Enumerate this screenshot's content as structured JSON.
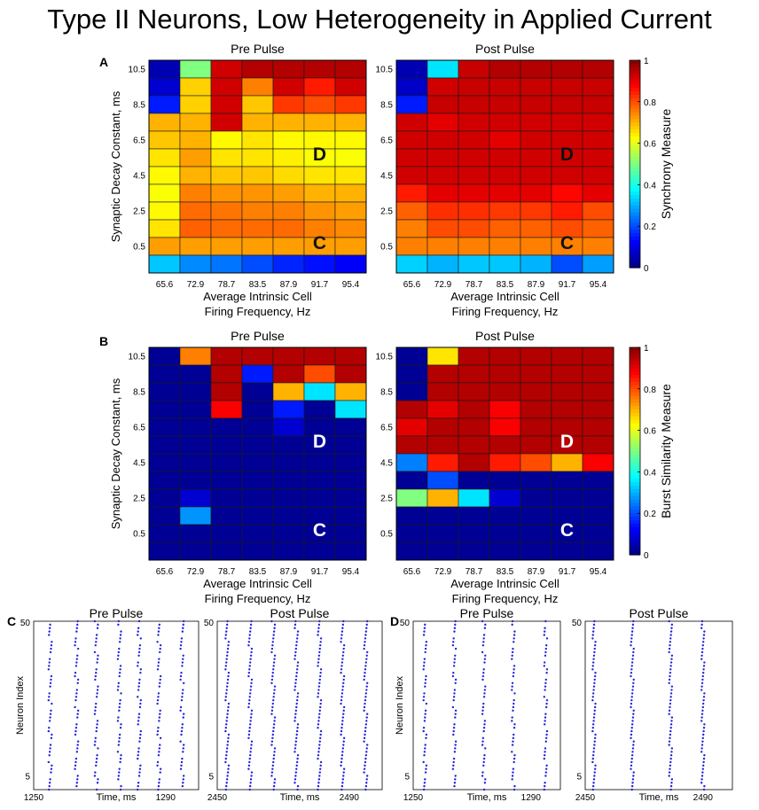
{
  "title": "Type II Neurons, Low Heterogeneity in Applied Current",
  "panel_labels": [
    "A",
    "B",
    "C",
    "D"
  ],
  "chart_data": [
    {
      "type": "heatmap",
      "id": "A-pre",
      "title": "Pre Pulse",
      "xlabel_line1": "Average Intrinsic Cell",
      "xlabel_line2": "Firing Frequency, Hz",
      "ylabel": "Synaptic Decay Constant, ms",
      "x_ticks": [
        "65.6",
        "72.9",
        "78.7",
        "83.5",
        "87.9",
        "91.7",
        "95.4"
      ],
      "y_ticks": [
        "10.5",
        "8.5",
        "6.5",
        "4.5",
        "2.5",
        "0.5"
      ],
      "rows_top_to_bottom": [
        [
          0.05,
          0.5,
          0.92,
          0.95,
          0.95,
          0.95,
          0.95
        ],
        [
          0.08,
          0.67,
          0.92,
          0.75,
          0.92,
          0.85,
          0.92
        ],
        [
          0.15,
          0.67,
          0.92,
          0.68,
          0.82,
          0.8,
          0.82
        ],
        [
          0.7,
          0.7,
          0.92,
          0.7,
          0.7,
          0.7,
          0.7
        ],
        [
          0.68,
          0.7,
          0.63,
          0.65,
          0.63,
          0.63,
          0.63
        ],
        [
          0.65,
          0.72,
          0.65,
          0.65,
          0.64,
          0.62,
          0.62
        ],
        [
          0.63,
          0.7,
          0.68,
          0.68,
          0.66,
          0.65,
          0.65
        ],
        [
          0.62,
          0.75,
          0.73,
          0.73,
          0.72,
          0.7,
          0.7
        ],
        [
          0.63,
          0.77,
          0.76,
          0.75,
          0.75,
          0.73,
          0.72
        ],
        [
          0.65,
          0.78,
          0.77,
          0.77,
          0.77,
          0.75,
          0.74
        ],
        [
          0.72,
          0.72,
          0.72,
          0.72,
          0.72,
          0.72,
          0.72
        ],
        [
          0.32,
          0.26,
          0.24,
          0.2,
          0.16,
          0.14,
          0.12
        ]
      ],
      "markers": [
        {
          "label": "D",
          "col": 5,
          "row": 4.8
        },
        {
          "label": "C",
          "col": 5,
          "row": 9.8
        }
      ]
    },
    {
      "type": "heatmap",
      "id": "A-post",
      "title": "Post Pulse",
      "xlabel_line1": "Average Intrinsic Cell",
      "xlabel_line2": "Firing Frequency, Hz",
      "x_ticks": [
        "65.6",
        "72.9",
        "78.7",
        "83.5",
        "87.9",
        "91.7",
        "95.4"
      ],
      "y_ticks": [
        "10.5",
        "8.5",
        "6.5",
        "4.5",
        "2.5",
        "0.5"
      ],
      "rows_top_to_bottom": [
        [
          0.05,
          0.35,
          0.93,
          0.95,
          0.95,
          0.95,
          0.95
        ],
        [
          0.07,
          0.92,
          0.93,
          0.93,
          0.93,
          0.93,
          0.93
        ],
        [
          0.15,
          0.93,
          0.93,
          0.93,
          0.93,
          0.93,
          0.93
        ],
        [
          0.92,
          0.9,
          0.92,
          0.92,
          0.92,
          0.92,
          0.92
        ],
        [
          0.92,
          0.92,
          0.92,
          0.9,
          0.92,
          0.92,
          0.92
        ],
        [
          0.92,
          0.92,
          0.92,
          0.92,
          0.92,
          0.92,
          0.92
        ],
        [
          0.92,
          0.92,
          0.92,
          0.92,
          0.92,
          0.92,
          0.92
        ],
        [
          0.85,
          0.9,
          0.9,
          0.9,
          0.9,
          0.87,
          0.9
        ],
        [
          0.78,
          0.83,
          0.83,
          0.82,
          0.82,
          0.85,
          0.8
        ],
        [
          0.75,
          0.8,
          0.8,
          0.78,
          0.78,
          0.8,
          0.78
        ],
        [
          0.75,
          0.75,
          0.75,
          0.75,
          0.75,
          0.75,
          0.75
        ],
        [
          0.33,
          0.3,
          0.32,
          0.32,
          0.3,
          0.2,
          0.28
        ]
      ],
      "markers": [
        {
          "label": "D",
          "col": 5,
          "row": 4.8
        },
        {
          "label": "C",
          "col": 5,
          "row": 9.8
        }
      ]
    },
    {
      "type": "heatmap",
      "id": "B-pre",
      "title": "Pre Pulse",
      "xlabel_line1": "Average Intrinsic Cell",
      "xlabel_line2": "Firing Frequency, Hz",
      "ylabel": "Synaptic Decay Constant, ms",
      "x_ticks": [
        "65.6",
        "72.9",
        "78.7",
        "83.5",
        "87.9",
        "91.7",
        "95.4"
      ],
      "y_ticks": [
        "10.5",
        "8.5",
        "6.5",
        "4.5",
        "2.5",
        "0.5"
      ],
      "rows_top_to_bottom": [
        [
          0.02,
          0.75,
          0.95,
          0.95,
          0.95,
          0.95,
          0.95
        ],
        [
          0.02,
          0.02,
          0.95,
          0.15,
          0.95,
          0.8,
          0.95
        ],
        [
          0.02,
          0.02,
          0.95,
          0.02,
          0.7,
          0.35,
          0.7
        ],
        [
          0.02,
          0.02,
          0.88,
          0.02,
          0.15,
          0.02,
          0.35
        ],
        [
          0.02,
          0.02,
          0.02,
          0.02,
          0.08,
          0.02,
          0.02
        ],
        [
          0.02,
          0.02,
          0.02,
          0.02,
          0.02,
          0.02,
          0.02
        ],
        [
          0.02,
          0.02,
          0.02,
          0.02,
          0.02,
          0.02,
          0.02
        ],
        [
          0.02,
          0.02,
          0.02,
          0.02,
          0.02,
          0.02,
          0.02
        ],
        [
          0.02,
          0.08,
          0.02,
          0.02,
          0.02,
          0.02,
          0.02
        ],
        [
          0.02,
          0.27,
          0.02,
          0.02,
          0.02,
          0.02,
          0.02
        ],
        [
          0.02,
          0.02,
          0.02,
          0.02,
          0.02,
          0.02,
          0.02
        ],
        [
          0.02,
          0.02,
          0.02,
          0.02,
          0.02,
          0.02,
          0.02
        ]
      ],
      "markers": [
        {
          "label": "D",
          "col": 5,
          "row": 4.8
        },
        {
          "label": "C",
          "col": 5,
          "row": 9.8
        }
      ]
    },
    {
      "type": "heatmap",
      "id": "B-post",
      "title": "Post Pulse",
      "xlabel_line1": "Average Intrinsic Cell",
      "xlabel_line2": "Firing Frequency, Hz",
      "x_ticks": [
        "65.6",
        "72.9",
        "78.7",
        "83.5",
        "87.9",
        "91.7",
        "95.4"
      ],
      "y_ticks": [
        "10.5",
        "8.5",
        "6.5",
        "4.5",
        "2.5",
        "0.5"
      ],
      "rows_top_to_bottom": [
        [
          0.02,
          0.65,
          0.95,
          0.95,
          0.95,
          0.95,
          0.95
        ],
        [
          0.02,
          0.95,
          0.95,
          0.95,
          0.95,
          0.95,
          0.95
        ],
        [
          0.02,
          0.95,
          0.95,
          0.95,
          0.95,
          0.95,
          0.95
        ],
        [
          0.95,
          0.9,
          0.95,
          0.88,
          0.95,
          0.95,
          0.95
        ],
        [
          0.9,
          0.95,
          0.95,
          0.88,
          0.95,
          0.95,
          0.95
        ],
        [
          0.95,
          0.95,
          0.95,
          0.95,
          0.95,
          0.95,
          0.95
        ],
        [
          0.25,
          0.85,
          0.95,
          0.85,
          0.8,
          0.7,
          0.88
        ],
        [
          0.02,
          0.2,
          0.02,
          0.02,
          0.02,
          0.02,
          0.02
        ],
        [
          0.5,
          0.7,
          0.35,
          0.08,
          0.02,
          0.02,
          0.02
        ],
        [
          0.02,
          0.02,
          0.02,
          0.02,
          0.02,
          0.02,
          0.02
        ],
        [
          0.02,
          0.02,
          0.02,
          0.02,
          0.02,
          0.02,
          0.02
        ],
        [
          0.02,
          0.02,
          0.02,
          0.02,
          0.02,
          0.02,
          0.02
        ]
      ],
      "markers": [
        {
          "label": "D",
          "col": 5,
          "row": 4.8
        },
        {
          "label": "C",
          "col": 5,
          "row": 9.8
        }
      ]
    },
    {
      "type": "colorbar",
      "id": "A-cbar",
      "label": "Synchrony Measure",
      "ticks": [
        "0",
        "0.2",
        "0.4",
        "0.6",
        "0.8",
        "1"
      ],
      "range": [
        0,
        1
      ]
    },
    {
      "type": "colorbar",
      "id": "B-cbar",
      "label": "Burst Similarity Measure",
      "ticks": [
        "0",
        "0.2",
        "0.4",
        "0.6",
        "0.8",
        "1"
      ],
      "range": [
        0,
        1
      ]
    },
    {
      "type": "scatter",
      "id": "C-pre",
      "title": "Pre Pulse",
      "xlabel": "Time, ms",
      "ylabel": "Neuron Index",
      "xlim": [
        1250,
        1300
      ],
      "ylim": [
        1,
        50
      ],
      "x_ticks": [
        "1250",
        "1290"
      ],
      "y_ticks": [
        "50",
        "5"
      ],
      "burst_times": [
        1255,
        1263,
        1269,
        1276,
        1282,
        1288,
        1295
      ],
      "point_color": "#2222dd"
    },
    {
      "type": "scatter",
      "id": "C-post",
      "title": "Post Pulse",
      "xlabel": "Time, ms",
      "xlim": [
        2450,
        2500
      ],
      "ylim": [
        1,
        50
      ],
      "x_ticks": [
        "2450",
        "2490"
      ],
      "y_ticks": [
        "50",
        "5"
      ],
      "burst_times": [
        2453,
        2460,
        2467,
        2474,
        2481,
        2488,
        2495
      ],
      "point_color": "#2222dd"
    },
    {
      "type": "scatter",
      "id": "D-pre",
      "title": "Pre Pulse",
      "xlabel": "Time, ms",
      "ylabel": "Neuron Index",
      "xlim": [
        1250,
        1300
      ],
      "ylim": [
        1,
        50
      ],
      "x_ticks": [
        "1250",
        "1290"
      ],
      "y_ticks": [
        "50",
        "5"
      ],
      "burst_times": [
        1254,
        1264,
        1274,
        1284,
        1295
      ],
      "point_color": "#2222dd"
    },
    {
      "type": "scatter",
      "id": "D-post",
      "title": "Post Pulse",
      "xlabel": "Time, ms",
      "xlim": [
        2450,
        2500
      ],
      "ylim": [
        1,
        50
      ],
      "x_ticks": [
        "2450",
        "2490"
      ],
      "y_ticks": [
        "50",
        "5"
      ],
      "burst_times": [
        2453,
        2466,
        2479,
        2490
      ],
      "point_color": "#2222dd"
    }
  ]
}
